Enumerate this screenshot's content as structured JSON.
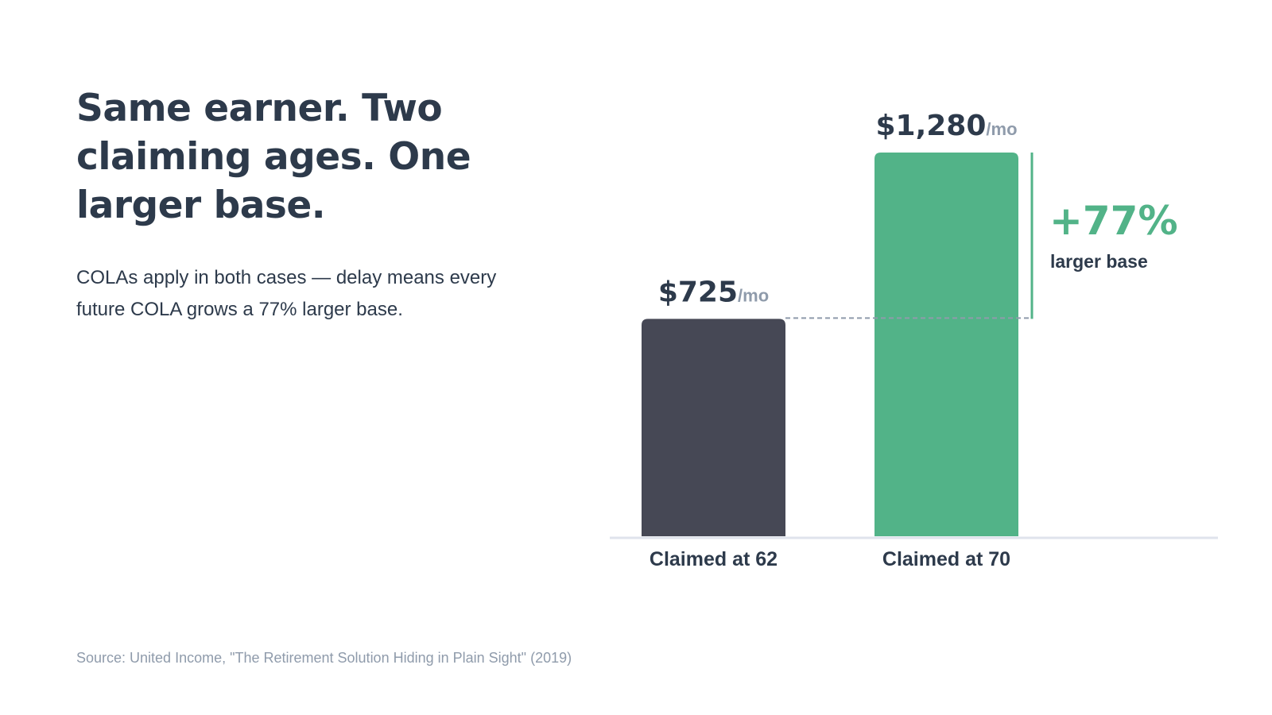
{
  "headline": "Same earner. Two claiming ages. One larger base.",
  "subtitle": "COLAs apply in both cases — delay means every future COLA grows a 77% larger base.",
  "source": "Source: United Income, \"The Retirement Solution Hiding in Plain Sight\" (2019)",
  "colors": {
    "text": "#2d3a4b",
    "muted": "#8f9bab",
    "bar_62": "#464855",
    "bar_70": "#52b388",
    "axis": "#dfe3ec",
    "dashed": "#8f9bab"
  },
  "chart_data": {
    "type": "bar",
    "categories": [
      "Claimed at 62",
      "Claimed at 70"
    ],
    "values": [
      725,
      1280
    ],
    "value_labels": [
      "$725",
      "$1,280"
    ],
    "unit_label": "/mo",
    "annotation": {
      "value": "+77%",
      "label": "larger base"
    },
    "xlabel": "",
    "ylabel": "",
    "ylim": [
      0,
      1280
    ],
    "grid": false
  }
}
